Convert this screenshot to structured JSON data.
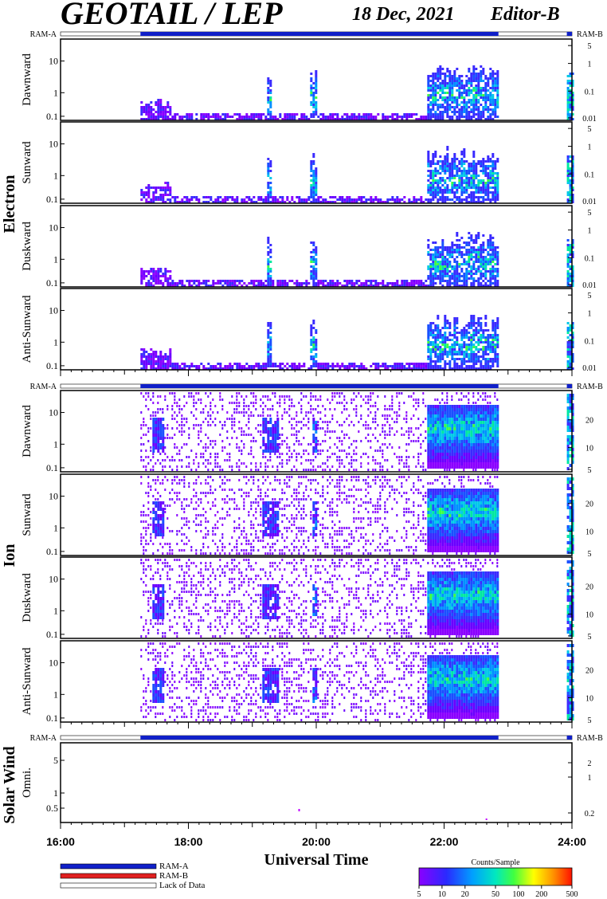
{
  "header": {
    "title": "GEOTAIL / LEP",
    "date": "18 Dec, 2021",
    "editor": "Editor-B"
  },
  "bar_labels": {
    "ram_a": "RAM-A",
    "ram_b": "RAM-B"
  },
  "groups": {
    "electron": "Electron",
    "ion": "Ion",
    "solar_wind": "Solar Wind"
  },
  "panel_names": {
    "dawnward": "Dawnward",
    "sunward": "Sunward",
    "duskward": "Duskward",
    "anti_sunward": "Anti-Sunward",
    "omni": "Omni."
  },
  "left_ticks": {
    "electron": [
      "10",
      "1",
      "0.1"
    ],
    "ion": [
      "10",
      "1",
      "0.1"
    ],
    "solar_wind": [
      "5",
      "1",
      "0.5"
    ]
  },
  "right_ticks": {
    "electron": [
      "5",
      "1",
      "0.1",
      "0.01"
    ],
    "ion": [
      "20",
      "10",
      "5"
    ],
    "solar_wind": [
      "2",
      "1",
      "0.2"
    ]
  },
  "time_axis": {
    "ticks": [
      "16:00",
      "18:00",
      "20:00",
      "22:00",
      "24:00"
    ],
    "label": "Universal Time"
  },
  "legend": {
    "ram_a": "RAM-A",
    "ram_b": "RAM-B",
    "lack": "Lack of Data",
    "colorbar_title": "Counts/Sample",
    "colorbar_ticks": [
      "5",
      "10",
      "20",
      "50",
      "100",
      "200",
      "500"
    ],
    "colors": {
      "ram_a": "#1020c8",
      "ram_b": "#e02020",
      "lack": "#ffffff"
    }
  },
  "chart_data": {
    "type": "heatmap",
    "x_range_hours": [
      16,
      24
    ],
    "color_range_counts": [
      5,
      500
    ],
    "data_coverage_hours": [
      [
        17.25,
        22.85
      ],
      [
        23.92,
        24.0
      ]
    ],
    "ram_a_hours": [
      [
        17.25,
        22.85
      ],
      [
        23.92,
        24.0
      ]
    ],
    "electron_features_hours": [
      {
        "start": 17.25,
        "end": 17.7,
        "level": "low"
      },
      {
        "start": 19.2,
        "end": 19.3,
        "level": "moderate"
      },
      {
        "start": 19.9,
        "end": 20.0,
        "level": "moderate"
      },
      {
        "start": 21.7,
        "end": 22.85,
        "level": "high"
      },
      {
        "start": 23.92,
        "end": 24.0,
        "level": "moderate"
      }
    ],
    "ion_features_hours": [
      {
        "start": 17.4,
        "end": 17.6,
        "level": "low"
      },
      {
        "start": 19.15,
        "end": 19.4,
        "level": "low"
      },
      {
        "start": 19.92,
        "end": 20.0,
        "level": "moderate"
      },
      {
        "start": 21.7,
        "end": 22.85,
        "level": "high"
      },
      {
        "start": 23.92,
        "end": 24.0,
        "level": "moderate"
      }
    ]
  }
}
